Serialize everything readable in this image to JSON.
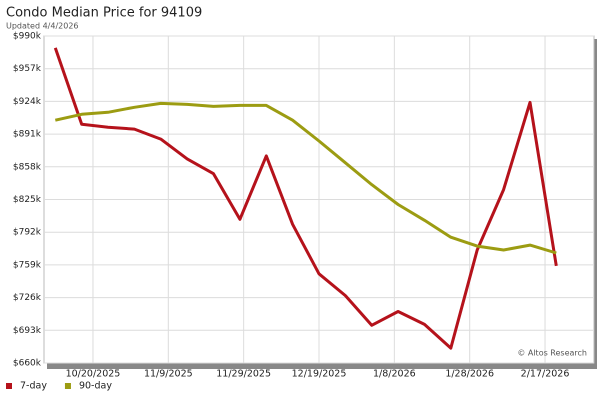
{
  "chart_data": {
    "type": "line",
    "title": "Condo Median Price for 94109",
    "subtitle": "Updated 4/4/2026",
    "annotation": "© Altos Research",
    "x": [
      "10/10/2025",
      "10/17/2025",
      "10/24/2025",
      "10/31/2025",
      "11/7/2025",
      "11/14/2025",
      "11/21/2025",
      "11/28/2025",
      "12/5/2025",
      "12/12/2025",
      "12/19/2025",
      "12/26/2025",
      "1/2/2026",
      "1/9/2026",
      "1/16/2026",
      "1/23/2026",
      "1/30/2026",
      "2/6/2026",
      "2/13/2026",
      "2/20/2026"
    ],
    "series": [
      {
        "name": "7-day",
        "color": "#b5121b",
        "values": [
          978000,
          901000,
          898000,
          896000,
          886000,
          866000,
          851000,
          805000,
          869000,
          800000,
          750000,
          728000,
          698000,
          712000,
          699000,
          675000,
          774000,
          835000,
          923000,
          758000
        ]
      },
      {
        "name": "90-day",
        "color": "#9c9c12",
        "values": [
          905000,
          911000,
          913000,
          918000,
          922000,
          921000,
          919000,
          920000,
          920000,
          905000,
          884000,
          862000,
          840000,
          820000,
          804000,
          787000,
          778000,
          774000,
          779000,
          771000
        ]
      }
    ],
    "xlim": [
      "10/7/2025",
      "3/2/2026"
    ],
    "xticks": [
      "10/20/2025",
      "11/9/2025",
      "11/29/2025",
      "12/19/2025",
      "1/8/2026",
      "1/28/2026",
      "2/17/2026"
    ],
    "ylim": [
      660000,
      990000
    ],
    "yticks": [
      {
        "value": 660000,
        "label": "$660k"
      },
      {
        "value": 693000,
        "label": "$693k"
      },
      {
        "value": 726000,
        "label": "$726k"
      },
      {
        "value": 759000,
        "label": "$759k"
      },
      {
        "value": 792000,
        "label": "$792k"
      },
      {
        "value": 825000,
        "label": "$825k"
      },
      {
        "value": 858000,
        "label": "$858k"
      },
      {
        "value": 891000,
        "label": "$891k"
      },
      {
        "value": 924000,
        "label": "$924k"
      },
      {
        "value": 957000,
        "label": "$957k"
      },
      {
        "value": 990000,
        "label": "$990k"
      }
    ],
    "grid": true,
    "legend": "bottom-left"
  }
}
